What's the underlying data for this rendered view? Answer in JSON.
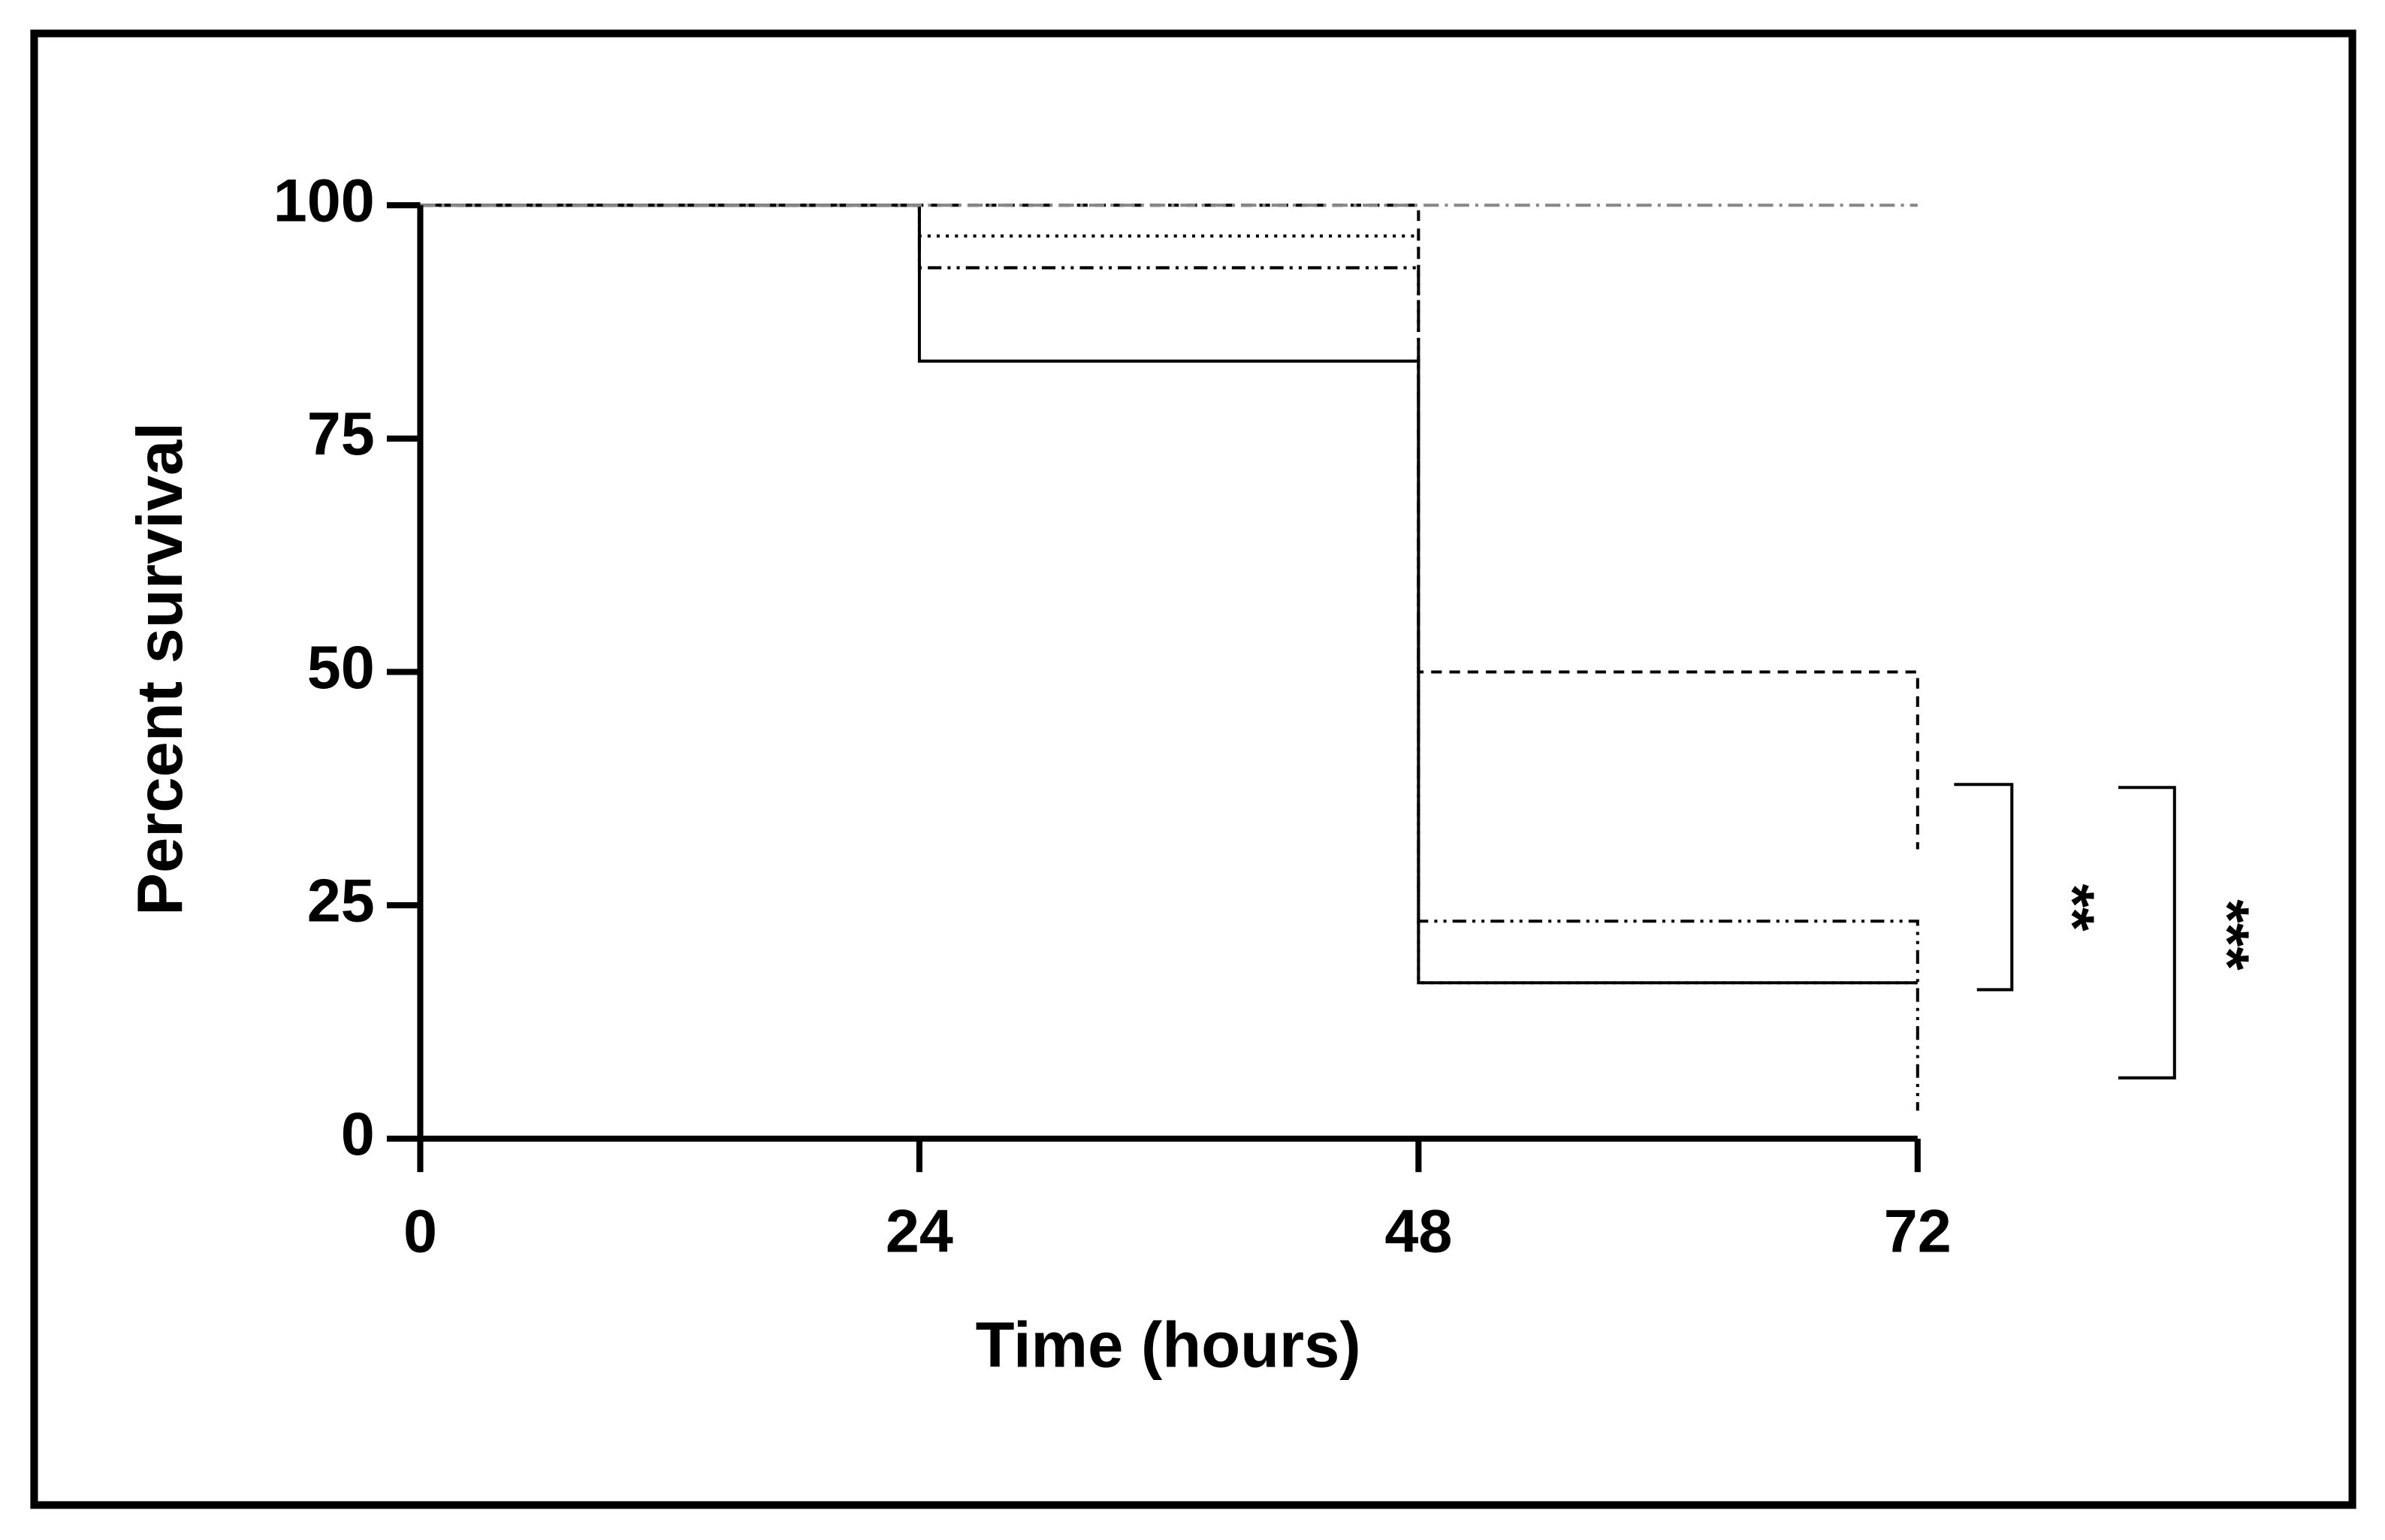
{
  "chart_data": {
    "type": "step",
    "x_label": "Time (hours)",
    "y_label": "Percent survival",
    "x": [
      0,
      24,
      48,
      72
    ],
    "series": [
      {
        "color": "#000000",
        "style": "solid",
        "values": [
          100,
          83.3,
          16.7,
          16.7
        ]
      },
      {
        "color": "#000000",
        "style": "dashed",
        "values": [
          100,
          100,
          50,
          31
        ]
      },
      {
        "color": "#000000",
        "style": "dotted",
        "values": [
          100,
          96.7,
          16.7,
          16.7
        ]
      },
      {
        "color": "#000000",
        "style": "dash-dot-dot",
        "values": [
          100,
          93.3,
          23.3,
          3
        ]
      },
      {
        "color": "#888888",
        "style": "dash-dot",
        "values": [
          100,
          100,
          100,
          100
        ]
      }
    ],
    "annotations": [
      "**",
      "***"
    ],
    "xlim": [
      0,
      72
    ],
    "xticks": [
      0,
      24,
      48,
      72
    ],
    "ylim": [
      0,
      100
    ],
    "yticks": [
      0,
      25,
      50,
      75,
      100
    ]
  }
}
